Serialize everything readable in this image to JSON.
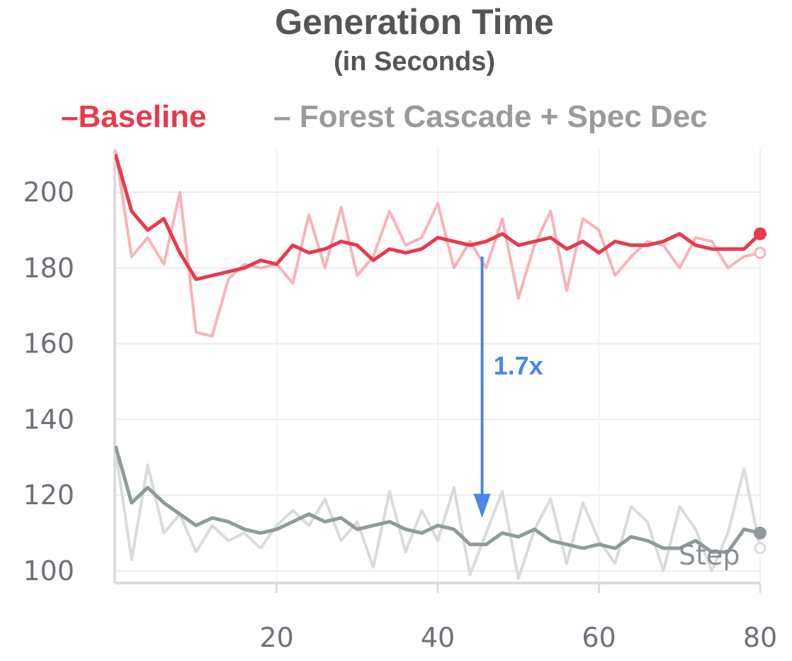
{
  "chart_data": {
    "type": "line",
    "title": "Generation Time",
    "subtitle": "(in Seconds)",
    "xlabel": "Step",
    "ylabel": "",
    "xlim": [
      0,
      80
    ],
    "ylim": [
      98,
      210
    ],
    "x_ticks": [
      20,
      40,
      60,
      80
    ],
    "y_ticks": [
      100,
      120,
      140,
      160,
      180,
      200
    ],
    "grid": true,
    "legend_position": "top",
    "legend": [
      "–Baseline",
      "– Forest Cascade + Spec Dec"
    ],
    "series": [
      {
        "name": "–Baseline",
        "color": "#e8394d",
        "raw_color": "#f8b3b8",
        "x": [
          0,
          2,
          4,
          6,
          8,
          10,
          12,
          14,
          16,
          18,
          20,
          22,
          24,
          26,
          28,
          30,
          32,
          34,
          36,
          38,
          40,
          42,
          44,
          46,
          48,
          50,
          52,
          54,
          56,
          58,
          60,
          62,
          64,
          66,
          68,
          70,
          72,
          74,
          76,
          78,
          80
        ],
        "raw": [
          211,
          183,
          188,
          181,
          200,
          163,
          162,
          177,
          181,
          180,
          181,
          176,
          194,
          180,
          196,
          178,
          183,
          195,
          186,
          188,
          197,
          180,
          187,
          180,
          193,
          172,
          186,
          195,
          174,
          193,
          190,
          178,
          183,
          187,
          186,
          180,
          188,
          187,
          180,
          183,
          184
        ],
        "smoothed": [
          210,
          195,
          190,
          193,
          184,
          177,
          178,
          179,
          180,
          182,
          181,
          186,
          184,
          185,
          187,
          186,
          182,
          185,
          184,
          185,
          188,
          187,
          186,
          187,
          189,
          186,
          187,
          188,
          185,
          187,
          184,
          187,
          186,
          186,
          187,
          189,
          186,
          185,
          185,
          185,
          189
        ]
      },
      {
        "name": "– Forest Cascade + Spec Dec",
        "color": "#8f9a9c",
        "raw_color": "#d8dadc",
        "x": [
          0,
          2,
          4,
          6,
          8,
          10,
          12,
          14,
          16,
          18,
          20,
          22,
          24,
          26,
          28,
          30,
          32,
          34,
          36,
          38,
          40,
          42,
          44,
          46,
          48,
          50,
          52,
          54,
          56,
          58,
          60,
          62,
          64,
          66,
          68,
          70,
          72,
          74,
          76,
          78,
          80
        ],
        "raw": [
          132,
          103,
          128,
          110,
          115,
          105,
          112,
          108,
          110,
          106,
          112,
          116,
          112,
          119,
          108,
          113,
          101,
          121,
          105,
          116,
          108,
          122,
          99,
          110,
          121,
          98,
          111,
          119,
          102,
          118,
          108,
          102,
          117,
          113,
          100,
          117,
          111,
          100,
          110,
          127,
          106
        ],
        "smoothed": [
          133,
          118,
          122,
          118,
          115,
          112,
          114,
          113,
          111,
          110,
          111,
          113,
          115,
          113,
          114,
          111,
          112,
          113,
          111,
          110,
          112,
          111,
          107,
          107,
          110,
          109,
          111,
          108,
          107,
          106,
          107,
          106,
          109,
          108,
          106,
          106,
          108,
          105,
          105,
          111,
          110
        ]
      }
    ],
    "annotations": [
      {
        "text": "1.7x",
        "color": "#4a86e8",
        "x": 45.5,
        "y_from": 183,
        "y_to": 114
      }
    ]
  }
}
